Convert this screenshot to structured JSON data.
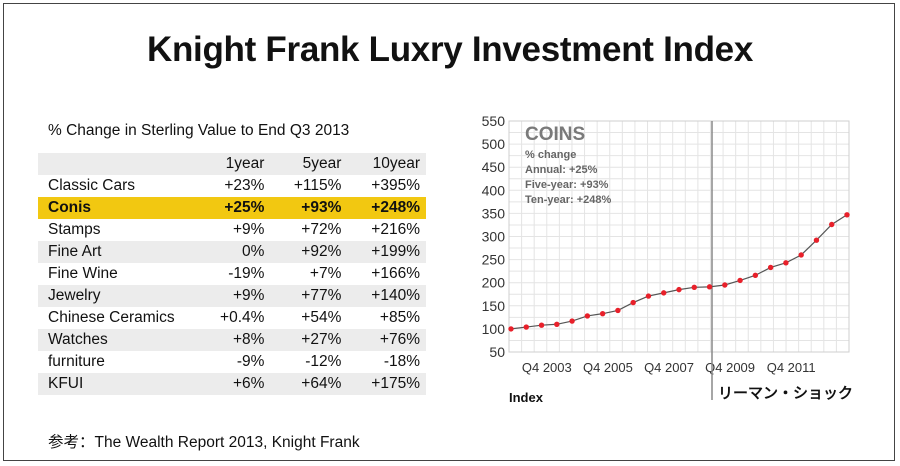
{
  "title": "Knight Frank Luxry Investment Index",
  "subtitle": "% Change in Sterling Value to End Q3 2013",
  "table": {
    "columns": [
      "1year",
      "5year",
      "10year"
    ],
    "rows": [
      {
        "name": "Classic Cars",
        "v": [
          "+23%",
          "+115%",
          "+395%"
        ]
      },
      {
        "name": "Conis",
        "v": [
          "+25%",
          "+93%",
          "+248%"
        ]
      },
      {
        "name": "Stamps",
        "v": [
          "+9%",
          "+72%",
          "+216%"
        ]
      },
      {
        "name": "Fine Art",
        "v": [
          "0%",
          "+92%",
          "+199%"
        ]
      },
      {
        "name": "Fine Wine",
        "v": [
          "-19%",
          "+7%",
          "+166%"
        ]
      },
      {
        "name": "Jewelry",
        "v": [
          "+9%",
          "+77%",
          "+140%"
        ]
      },
      {
        "name": "Chinese Ceramics",
        "v": [
          "+0.4%",
          "+54%",
          "+85%"
        ]
      },
      {
        "name": "Watches",
        "v": [
          "+8%",
          "+27%",
          "+76%"
        ]
      },
      {
        "name": "furniture",
        "v": [
          "-9%",
          "-12%",
          "-18%"
        ]
      },
      {
        "name": "KFUI",
        "v": [
          "+6%",
          "+64%",
          "+175%"
        ]
      }
    ]
  },
  "source": "参考：The Wealth Report 2013, Knight Frank",
  "chart_data": {
    "type": "line",
    "title": "COINS",
    "annotation_lines": [
      "% change",
      "Annual: +25%",
      "Five-year: +93%",
      "Ten-year: +248%"
    ],
    "ylabel": "Index",
    "marker_label": "リーマン・ショック",
    "ylim": [
      50,
      550
    ],
    "yticks": [
      50,
      100,
      150,
      200,
      250,
      300,
      350,
      400,
      450,
      500,
      550
    ],
    "xtick_labels": [
      "Q4 2003",
      "Q4 2005",
      "Q4 2007",
      "Q4 2009",
      "Q4 2011"
    ],
    "marker_at": 20,
    "grid": true,
    "line_color": "#555555",
    "point_color": "#e8202a",
    "series": [
      {
        "values": [
          100,
          104,
          108,
          110,
          117,
          128,
          133,
          140,
          157,
          171,
          178,
          185,
          190,
          191,
          195,
          205,
          216,
          233,
          243,
          260,
          292,
          326,
          347
        ]
      }
    ]
  }
}
